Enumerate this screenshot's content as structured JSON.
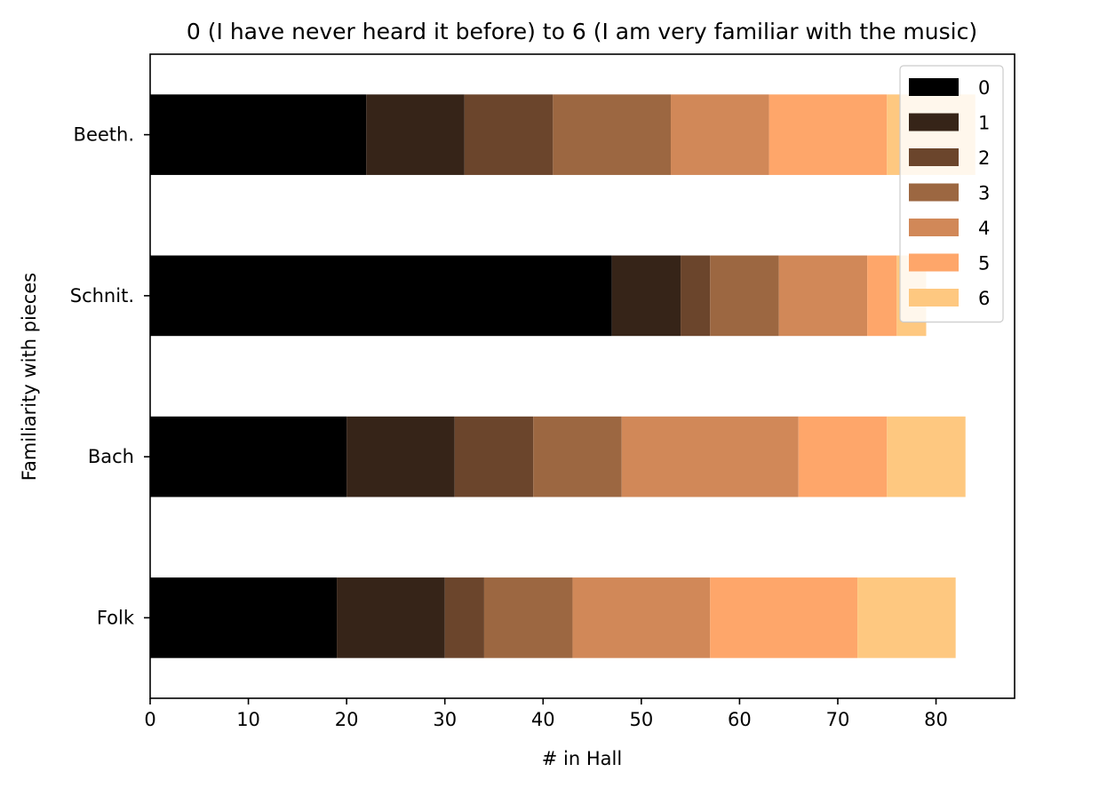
{
  "chart_data": {
    "type": "bar",
    "orientation": "horizontal",
    "stacked": true,
    "title": "0 (I have never heard it before) to 6 (I am very familiar with the music)",
    "xlabel": "# in Hall",
    "ylabel": "Familiarity with pieces",
    "xlim": [
      0,
      88
    ],
    "xticks": [
      0,
      10,
      20,
      30,
      40,
      50,
      60,
      70,
      80
    ],
    "categories": [
      "Beeth.",
      "Schnit.",
      "Bach",
      "Folk"
    ],
    "series": [
      {
        "name": "0",
        "color": "#000000",
        "values": [
          22,
          47,
          20,
          19
        ]
      },
      {
        "name": "1",
        "color": "#362418",
        "values": [
          10,
          7,
          11,
          11
        ]
      },
      {
        "name": "2",
        "color": "#6b452c",
        "values": [
          9,
          3,
          8,
          4
        ]
      },
      {
        "name": "3",
        "color": "#9c6741",
        "values": [
          12,
          7,
          9,
          9
        ]
      },
      {
        "name": "4",
        "color": "#d18858",
        "values": [
          10,
          9,
          18,
          14
        ]
      },
      {
        "name": "5",
        "color": "#fea66a",
        "values": [
          12,
          3,
          9,
          15
        ]
      },
      {
        "name": "6",
        "color": "#fec880",
        "values": [
          9,
          3,
          8,
          10
        ]
      }
    ],
    "grid": false,
    "legend_position": "top-right"
  }
}
